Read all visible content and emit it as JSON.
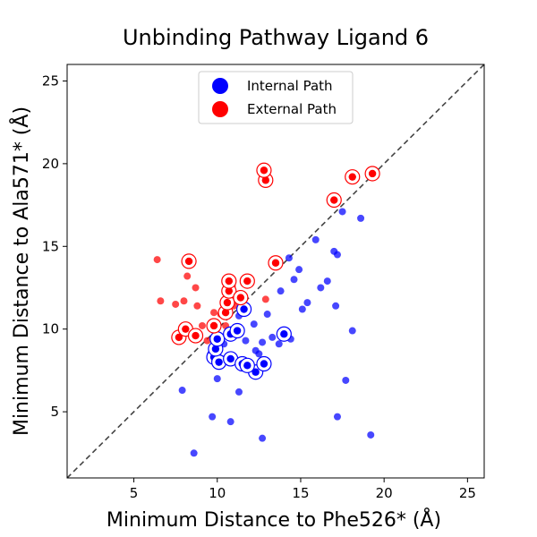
{
  "chart_data": {
    "type": "scatter",
    "title": "Unbinding Pathway Ligand 6",
    "xlabel": "Minimum Distance to Phe526* (Å)",
    "ylabel": "Minimum Distance to Ala571* (Å)",
    "xlim": [
      1,
      26
    ],
    "ylim": [
      1,
      26
    ],
    "xticks": [
      5,
      10,
      15,
      20,
      25
    ],
    "yticks": [
      5,
      10,
      15,
      20,
      25
    ],
    "grid": false,
    "legend_placement": "top-center",
    "diagonal": {
      "from": [
        1,
        1
      ],
      "to": [
        26,
        26
      ],
      "style": "dashed",
      "color": "#444444"
    },
    "series": [
      {
        "name": "Internal Path",
        "color": "#0000ff",
        "points": [
          [
            10.1,
            7.9
          ],
          [
            10.5,
            8.1
          ],
          [
            9.8,
            8.3
          ],
          [
            10.8,
            8.2
          ],
          [
            11.5,
            7.9
          ],
          [
            12.3,
            7.4
          ],
          [
            11.8,
            7.8
          ],
          [
            12.8,
            7.9
          ],
          [
            9.6,
            8.5
          ],
          [
            10.0,
            8.8
          ],
          [
            10.4,
            9.1
          ],
          [
            10.9,
            9.7
          ],
          [
            11.2,
            9.9
          ],
          [
            9.9,
            9.4
          ],
          [
            11.7,
            9.3
          ],
          [
            12.3,
            8.7
          ],
          [
            12.7,
            9.2
          ],
          [
            12.5,
            8.5
          ],
          [
            11.3,
            10.8
          ],
          [
            11.8,
            11.1
          ],
          [
            12.2,
            10.3
          ],
          [
            11.0,
            10.0
          ],
          [
            13.0,
            10.9
          ],
          [
            13.3,
            9.5
          ],
          [
            13.7,
            9.1
          ],
          [
            14.0,
            9.7
          ],
          [
            14.4,
            9.4
          ],
          [
            13.8,
            12.3
          ],
          [
            14.3,
            14.3
          ],
          [
            14.6,
            13.0
          ],
          [
            14.9,
            13.6
          ],
          [
            15.1,
            11.2
          ],
          [
            15.4,
            11.6
          ],
          [
            15.9,
            15.4
          ],
          [
            16.2,
            12.5
          ],
          [
            16.6,
            12.9
          ],
          [
            17.0,
            14.7
          ],
          [
            17.2,
            14.5
          ],
          [
            17.5,
            17.1
          ],
          [
            17.1,
            11.4
          ],
          [
            17.7,
            6.9
          ],
          [
            18.1,
            9.9
          ],
          [
            18.6,
            16.7
          ],
          [
            17.2,
            4.7
          ],
          [
            19.2,
            3.6
          ],
          [
            12.7,
            3.4
          ],
          [
            10.8,
            4.4
          ],
          [
            9.7,
            4.7
          ],
          [
            8.6,
            2.5
          ],
          [
            7.9,
            6.3
          ],
          [
            10.0,
            7.0
          ],
          [
            11.3,
            6.2
          ],
          [
            11.6,
            8.0
          ],
          [
            12.1,
            7.7
          ]
        ],
        "highlighted": [
          [
            9.8,
            8.3
          ],
          [
            10.1,
            8.0
          ],
          [
            10.8,
            8.2
          ],
          [
            11.5,
            7.9
          ],
          [
            12.3,
            7.4
          ],
          [
            12.8,
            7.9
          ],
          [
            9.9,
            8.8
          ],
          [
            10.0,
            9.4
          ],
          [
            10.8,
            9.7
          ],
          [
            11.2,
            9.9
          ],
          [
            11.6,
            11.2
          ],
          [
            11.8,
            7.8
          ],
          [
            14.0,
            9.7
          ]
        ]
      },
      {
        "name": "External Path",
        "color": "#ff0000",
        "points": [
          [
            6.4,
            14.2
          ],
          [
            6.6,
            11.7
          ],
          [
            7.5,
            11.5
          ],
          [
            8.0,
            11.7
          ],
          [
            8.2,
            13.2
          ],
          [
            8.7,
            12.5
          ],
          [
            8.4,
            14.1
          ],
          [
            8.8,
            11.4
          ],
          [
            7.7,
            9.5
          ],
          [
            8.1,
            10.0
          ],
          [
            8.7,
            9.6
          ],
          [
            9.1,
            10.2
          ],
          [
            9.4,
            9.3
          ],
          [
            9.8,
            11.0
          ],
          [
            10.2,
            10.9
          ],
          [
            10.5,
            11.0
          ],
          [
            10.5,
            10.2
          ],
          [
            9.8,
            10.2
          ],
          [
            10.6,
            11.6
          ],
          [
            10.7,
            12.3
          ],
          [
            10.9,
            12.6
          ],
          [
            11.0,
            11.4
          ],
          [
            11.4,
            11.9
          ],
          [
            11.8,
            12.9
          ],
          [
            10.7,
            12.9
          ],
          [
            12.9,
            11.8
          ],
          [
            13.5,
            14.0
          ],
          [
            12.9,
            19.0
          ],
          [
            12.8,
            19.6
          ],
          [
            17.0,
            17.8
          ],
          [
            18.1,
            19.2
          ],
          [
            19.3,
            19.4
          ]
        ],
        "highlighted": [
          [
            8.3,
            14.1
          ],
          [
            7.7,
            9.5
          ],
          [
            8.1,
            10.0
          ],
          [
            8.7,
            9.6
          ],
          [
            9.8,
            10.2
          ],
          [
            10.5,
            11.0
          ],
          [
            10.6,
            11.6
          ],
          [
            10.7,
            12.3
          ],
          [
            10.7,
            12.9
          ],
          [
            11.4,
            11.9
          ],
          [
            11.8,
            12.9
          ],
          [
            13.5,
            14.0
          ],
          [
            12.9,
            19.0
          ],
          [
            12.8,
            19.6
          ],
          [
            17.0,
            17.8
          ],
          [
            18.1,
            19.2
          ],
          [
            19.3,
            19.4
          ]
        ]
      }
    ]
  }
}
